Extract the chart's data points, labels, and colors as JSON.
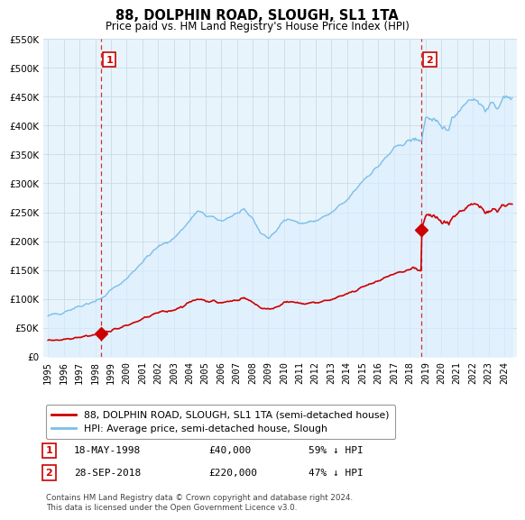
{
  "title": "88, DOLPHIN ROAD, SLOUGH, SL1 1TA",
  "subtitle": "Price paid vs. HM Land Registry's House Price Index (HPI)",
  "ylabel_values": [
    0,
    50000,
    100000,
    150000,
    200000,
    250000,
    300000,
    350000,
    400000,
    450000,
    500000,
    550000
  ],
  "ylim": [
    0,
    550000
  ],
  "xlim_left": 1994.7,
  "xlim_right": 2024.8,
  "hpi_color": "#7bbfe8",
  "hpi_fill_color": "#ddeeff",
  "price_color": "#cc0000",
  "dashed_color": "#cc0000",
  "point1_x": 1998.37,
  "point1_y": 40000,
  "point2_x": 2018.74,
  "point2_y": 220000,
  "legend_label1": "88, DOLPHIN ROAD, SLOUGH, SL1 1TA (semi-detached house)",
  "legend_label2": "HPI: Average price, semi-detached house, Slough",
  "annotation1_num": "1",
  "annotation1_date": "18-MAY-1998",
  "annotation1_price": "£40,000",
  "annotation1_hpi": "59% ↓ HPI",
  "annotation2_num": "2",
  "annotation2_date": "28-SEP-2018",
  "annotation2_price": "£220,000",
  "annotation2_hpi": "47% ↓ HPI",
  "footer": "Contains HM Land Registry data © Crown copyright and database right 2024.\nThis data is licensed under the Open Government Licence v3.0.",
  "background_color": "#ffffff",
  "chart_bg_color": "#e8f4fc",
  "grid_color": "#c8dce8"
}
